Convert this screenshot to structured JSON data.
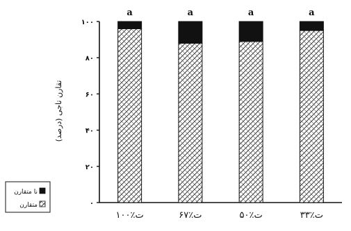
{
  "chart_data": {
    "type": "bar",
    "stacked": true,
    "categories": [
      "۱۰۰٪ت",
      "۶۷٪ت",
      "۵۰٪ت",
      "۳۳٪ت"
    ],
    "series": [
      {
        "name": "متقارن",
        "values": [
          96,
          88,
          89,
          95
        ],
        "pattern": "crosshatch"
      },
      {
        "name": "نا متقارن",
        "values": [
          4,
          12,
          11,
          5
        ],
        "pattern": "solid"
      }
    ],
    "significance_letters": [
      "a",
      "a",
      "a",
      "a"
    ],
    "ylabel": "تقارن تاجی (درصد)",
    "yticks": [
      "۰",
      "۲۰",
      "۴۰",
      "۶۰",
      "۸۰",
      "۱۰۰"
    ],
    "ylim": [
      0,
      100
    ],
    "legend_position": "bottom-left",
    "colors": {
      "solid": "#111111",
      "hatch": "#222222",
      "axis": "#111111"
    }
  }
}
